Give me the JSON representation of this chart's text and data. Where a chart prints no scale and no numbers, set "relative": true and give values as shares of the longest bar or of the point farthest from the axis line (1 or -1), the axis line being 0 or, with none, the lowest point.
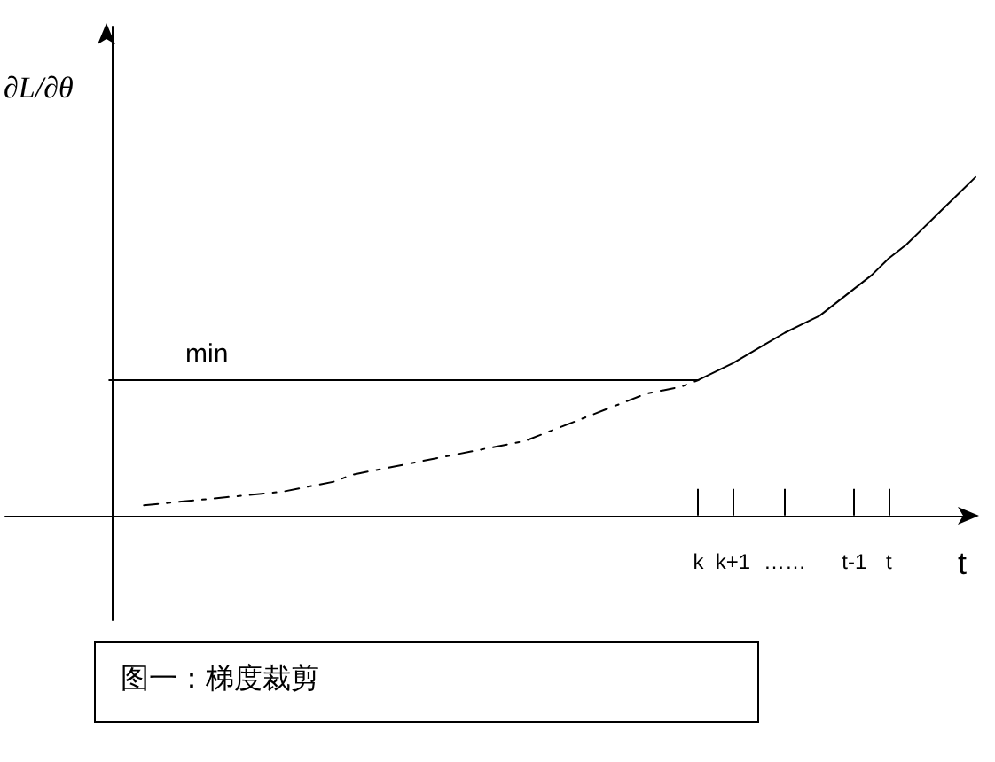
{
  "chart_data": {
    "type": "line",
    "relative": true,
    "ylabel": "∂L/∂θ",
    "xlabel": "t",
    "categories": [
      null,
      null,
      null,
      null,
      null,
      null,
      null,
      null,
      null,
      null,
      null,
      null,
      null,
      null,
      null,
      null,
      null,
      null,
      null,
      null,
      null,
      null,
      null,
      null,
      null,
      null,
      null,
      null,
      null,
      null,
      null,
      null,
      null,
      null,
      null,
      null,
      null,
      null,
      null,
      null,
      "k",
      null,
      "k+1",
      null,
      null,
      "……",
      null,
      null,
      null,
      "t-1",
      null,
      "t",
      null,
      null,
      null,
      null,
      null
    ],
    "series": [
      {
        "color": "#000000",
        "line_style": "dashed",
        "values": [
          null,
          null,
          null,
          null,
          null,
          null,
          null,
          null,
          0.03,
          0.035,
          0.04,
          0.045,
          0.05,
          0.055,
          0.06,
          0.065,
          0.07,
          0.08,
          0.09,
          0.1,
          0.12,
          0.13,
          0.14,
          0.15,
          0.16,
          0.17,
          0.18,
          0.19,
          0.2,
          0.21,
          0.22,
          0.24,
          0.26,
          0.28,
          0.3,
          0.32,
          0.34,
          0.36,
          0.37,
          0.38,
          0.4,
          null,
          null,
          null,
          null,
          null,
          null,
          null,
          null,
          null,
          null,
          null,
          null,
          null,
          null,
          null,
          null
        ]
      },
      {
        "color": "#000000",
        "line_style": "solid",
        "values": [
          null,
          null,
          null,
          null,
          null,
          null,
          null,
          null,
          null,
          null,
          null,
          null,
          null,
          null,
          null,
          null,
          null,
          null,
          null,
          null,
          null,
          null,
          null,
          null,
          null,
          null,
          null,
          null,
          null,
          null,
          null,
          null,
          null,
          null,
          null,
          null,
          null,
          null,
          null,
          null,
          0.4,
          0.425,
          0.45,
          0.48,
          0.51,
          0.54,
          0.565,
          0.59,
          0.63,
          0.67,
          0.71,
          0.76,
          0.8,
          0.85,
          0.9,
          0.95,
          1
        ]
      },
      {
        "name": "min",
        "color": "#000000",
        "line_style": "solid",
        "values": [
          null,
          null,
          null,
          null,
          null,
          null,
          0.4,
          0.4,
          0.4,
          0.4,
          0.4,
          0.4,
          0.4,
          0.4,
          0.4,
          0.4,
          0.4,
          0.4,
          0.4,
          0.4,
          0.4,
          0.4,
          0.4,
          0.4,
          0.4,
          0.4,
          0.4,
          0.4,
          0.4,
          0.4,
          0.4,
          0.4,
          0.4,
          0.4,
          0.4,
          0.4,
          0.4,
          0.4,
          0.4,
          0.4,
          0.4,
          null,
          null,
          null,
          null,
          null,
          null,
          null,
          null,
          null,
          null,
          null,
          null,
          null,
          null,
          null,
          null
        ]
      }
    ],
    "annotations": [
      "图一：梯度裁剪"
    ],
    "grid": false,
    "legend": false,
    "marker": "none"
  }
}
